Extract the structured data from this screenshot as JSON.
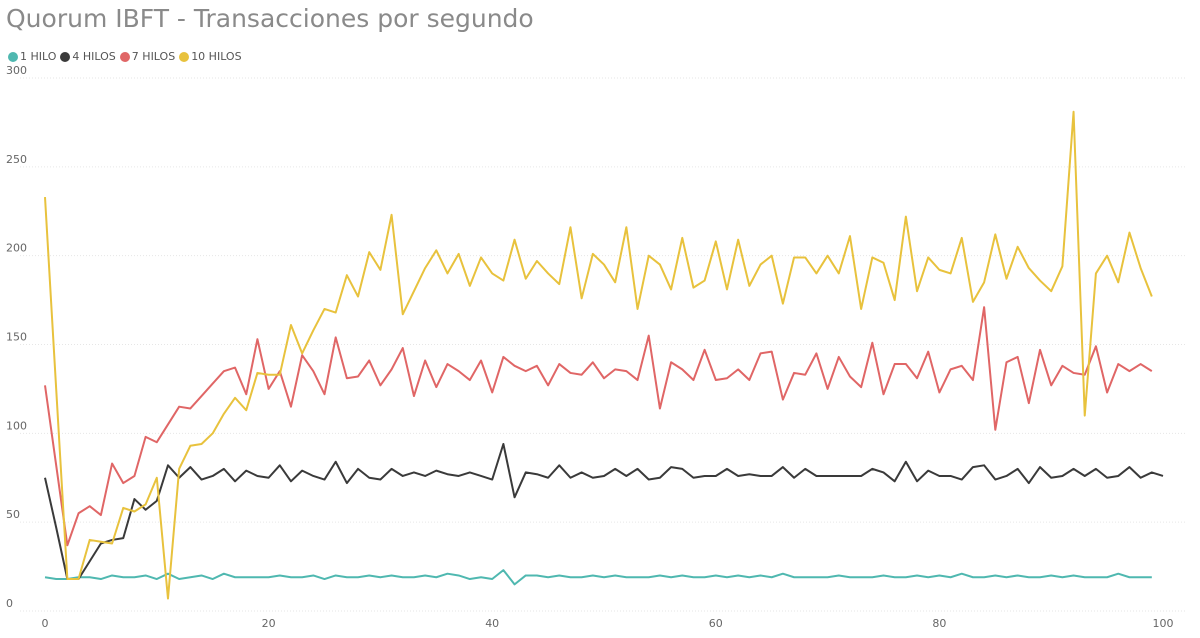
{
  "chart_data": {
    "type": "line",
    "title": "Quorum IBFT - Transacciones por segundo",
    "xlabel": "",
    "ylabel": "",
    "xlim": [
      0,
      100
    ],
    "ylim": [
      0,
      300
    ],
    "x_ticks": [
      "0",
      "20",
      "40",
      "60",
      "80",
      "100"
    ],
    "y_ticks": [
      "0",
      "50",
      "100",
      "150",
      "200",
      "250",
      "300"
    ],
    "grid": "horizontal",
    "legend_position": "top-left",
    "series": [
      {
        "name": "1 HILO",
        "color": "#4fb8b0",
        "values": [
          19,
          18,
          18,
          19,
          19,
          18,
          20,
          19,
          19,
          20,
          18,
          21,
          18,
          19,
          20,
          18,
          21,
          19,
          19,
          19,
          19,
          20,
          19,
          19,
          20,
          18,
          20,
          19,
          19,
          20,
          19,
          20,
          19,
          19,
          20,
          19,
          21,
          20,
          18,
          19,
          18,
          23,
          15,
          20,
          20,
          19,
          20,
          19,
          19,
          20,
          19,
          20,
          19,
          19,
          19,
          20,
          19,
          20,
          19,
          19,
          20,
          19,
          20,
          19,
          20,
          19,
          21,
          19,
          19,
          19,
          19,
          20,
          19,
          19,
          19,
          20,
          19,
          19,
          20,
          19,
          20,
          19,
          21,
          19,
          19,
          20,
          19,
          20,
          19,
          19,
          20,
          19,
          20,
          19,
          19,
          19,
          21,
          19,
          19,
          19
        ]
      },
      {
        "name": "4 HILOS",
        "color": "#3a3a3a",
        "values": [
          75,
          47,
          18,
          18,
          28,
          38,
          40,
          41,
          63,
          57,
          62,
          82,
          75,
          81,
          74,
          76,
          80,
          73,
          79,
          76,
          75,
          82,
          73,
          79,
          76,
          74,
          84,
          72,
          80,
          75,
          74,
          80,
          76,
          78,
          76,
          79,
          77,
          76,
          78,
          76,
          74,
          94,
          64,
          78,
          77,
          75,
          82,
          75,
          78,
          75,
          76,
          80,
          76,
          80,
          74,
          75,
          81,
          80,
          75,
          76,
          76,
          80,
          76,
          77,
          76,
          76,
          81,
          75,
          80,
          76,
          76,
          76,
          76,
          76,
          80,
          78,
          73,
          84,
          73,
          79,
          76,
          76,
          74,
          81,
          82,
          74,
          76,
          80,
          72,
          81,
          75,
          76,
          80,
          76,
          80,
          75,
          76,
          81,
          75,
          78,
          76
        ]
      },
      {
        "name": "7 HILOS",
        "color": "#e06666",
        "values": [
          127,
          82,
          37,
          55,
          59,
          54,
          83,
          72,
          76,
          98,
          95,
          105,
          115,
          114,
          121,
          128,
          135,
          137,
          122,
          153,
          125,
          135,
          115,
          144,
          135,
          122,
          154,
          131,
          132,
          141,
          127,
          136,
          148,
          121,
          141,
          126,
          139,
          135,
          130,
          141,
          123,
          143,
          138,
          135,
          138,
          127,
          139,
          134,
          133,
          140,
          131,
          136,
          135,
          130,
          155,
          114,
          140,
          136,
          130,
          147,
          130,
          131,
          136,
          130,
          145,
          146,
          119,
          134,
          133,
          145,
          125,
          143,
          132,
          126,
          151,
          122,
          139,
          139,
          131,
          146,
          123,
          136,
          138,
          130,
          171,
          102,
          140,
          143,
          117,
          147,
          127,
          138,
          134,
          133,
          149,
          123,
          139,
          135,
          139,
          135
        ]
      },
      {
        "name": "10 HILOS",
        "color": "#e8c23d",
        "values": [
          233,
          125,
          18,
          18,
          40,
          39,
          38,
          58,
          56,
          60,
          75,
          7,
          80,
          93,
          94,
          100,
          111,
          120,
          113,
          134,
          133,
          133,
          161,
          145,
          158,
          170,
          168,
          189,
          177,
          202,
          192,
          223,
          167,
          180,
          193,
          203,
          190,
          201,
          183,
          199,
          190,
          186,
          209,
          187,
          197,
          190,
          184,
          216,
          176,
          201,
          195,
          185,
          216,
          170,
          200,
          195,
          181,
          210,
          182,
          186,
          208,
          181,
          209,
          183,
          195,
          200,
          173,
          199,
          199,
          190,
          200,
          190,
          211,
          170,
          199,
          196,
          175,
          222,
          180,
          199,
          192,
          190,
          210,
          174,
          185,
          212,
          187,
          205,
          193,
          186,
          180,
          194,
          281,
          110,
          190,
          200,
          185,
          213,
          193,
          177
        ]
      }
    ]
  }
}
